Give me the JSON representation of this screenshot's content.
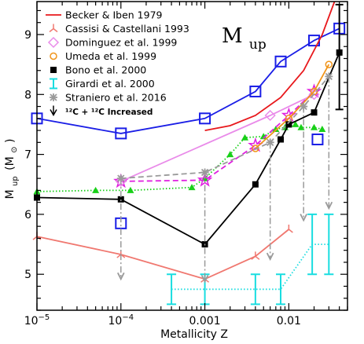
{
  "chart_data": {
    "type": "line",
    "title": "",
    "annotation": {
      "text_main": "M",
      "text_sub": "up"
    },
    "xlabel": "Metallicity Z",
    "ylabel_main": "M",
    "ylabel_sub": "up",
    "ylabel_unit": "(M",
    "ylabel_unit_sun": "⊙",
    "ylabel_unit_close": ")",
    "xscale": "log",
    "xlim": [
      1e-05,
      0.05
    ],
    "ylim": [
      4.4,
      9.55
    ],
    "xticks": [
      {
        "value": 1e-05,
        "base": "10",
        "exp": "−5"
      },
      {
        "value": 0.0001,
        "base": "10",
        "exp": "−4"
      },
      {
        "value": 0.001,
        "label": "0.001"
      },
      {
        "value": 0.01,
        "label": "0.01"
      }
    ],
    "yticks": [
      5,
      6,
      7,
      8,
      9
    ],
    "legend_position": "top-left",
    "series": [
      {
        "name": "Becker & Iben 1979",
        "color": "#e8181c",
        "marker": "none",
        "style": "solid",
        "x": [
          0.001,
          0.002,
          0.004,
          0.008,
          0.015,
          0.025,
          0.035
        ],
        "y": [
          7.4,
          7.48,
          7.65,
          7.95,
          8.4,
          9.0,
          9.55
        ]
      },
      {
        "name": "Cassisi & Castellani 1993",
        "color": "#f07870",
        "marker": "tri",
        "style": "solid",
        "x": [
          1e-05,
          0.0001,
          0.001,
          0.004,
          0.01
        ],
        "y": [
          5.63,
          5.33,
          4.92,
          5.3,
          5.75
        ]
      },
      {
        "name": "Dominguez et al. 1999",
        "color": "#e98be9",
        "marker": "diamond",
        "style": "solid",
        "x": [
          0.0001,
          0.006,
          0.02
        ],
        "y": [
          6.55,
          7.65,
          8.0
        ]
      },
      {
        "name": "Umeda et al. 1999",
        "color": "#f0941a",
        "marker": "circle",
        "style": "solid",
        "x": [
          0.004,
          0.01,
          0.02,
          0.03
        ],
        "y": [
          7.1,
          7.6,
          8.05,
          8.5
        ]
      },
      {
        "name": "Bono et al. 2000",
        "color": "#000000",
        "marker": "square-filled",
        "style": "solid",
        "x": [
          1e-05,
          0.0001,
          0.001,
          0.004,
          0.008,
          0.01,
          0.02,
          0.04
        ],
        "y": [
          6.28,
          6.25,
          5.5,
          6.5,
          7.25,
          7.5,
          7.7,
          8.7
        ]
      },
      {
        "name": "Girardi et al. 2000",
        "color": "#19dde0",
        "marker": "errorbar",
        "style": "dotted",
        "x": [
          0.0004,
          0.001,
          0.004,
          0.008,
          0.019,
          0.03
        ],
        "y": [
          4.75,
          4.75,
          4.75,
          4.75,
          5.5,
          5.5
        ],
        "yerr_low": [
          0.25,
          0.25,
          0.25,
          0.25,
          0.5,
          0.5
        ],
        "yerr_high": [
          0.25,
          0.25,
          0.25,
          0.25,
          0.5,
          0.5
        ]
      },
      {
        "name": "Straniero et al. 2016",
        "color": "#9a9a9a",
        "marker": "asterisk",
        "style": "dashed",
        "x": [
          0.0001,
          0.001,
          0.006,
          0.015,
          0.03
        ],
        "y": [
          6.6,
          6.7,
          7.2,
          7.8,
          8.3
        ]
      },
      {
        "name": "¹²C + ¹²C Increased",
        "color": "#9a9a9a",
        "marker": "arrow-down",
        "style": "dashdot",
        "x": [
          0.0001,
          0.001,
          0.006,
          0.015,
          0.03
        ],
        "y": [
          4.92,
          4.88,
          5.25,
          5.9,
          6.1
        ],
        "from_y": [
          6.6,
          6.7,
          7.2,
          7.8,
          8.3
        ]
      }
    ],
    "unlabeled_series": [
      {
        "color": "#1a1ee6",
        "marker": "square-open",
        "style": "solid",
        "x": [
          1e-05,
          0.0001,
          0.001,
          0.004,
          0.008,
          0.02,
          0.04
        ],
        "y": [
          7.6,
          7.35,
          7.6,
          8.05,
          8.55,
          8.9,
          9.1
        ]
      },
      {
        "color": "#1a1ee6",
        "marker": "square-open",
        "style": "none",
        "x": [
          0.0001,
          0.022
        ],
        "y": [
          5.85,
          7.25
        ]
      },
      {
        "color": "#18d018",
        "marker": "triangle-filled",
        "style": "dotted",
        "x": [
          1e-05,
          5e-05,
          0.00013,
          0.0007,
          0.001,
          0.002,
          0.003,
          0.005,
          0.007,
          0.009,
          0.012,
          0.014,
          0.02,
          0.025
        ],
        "y": [
          6.38,
          6.4,
          6.4,
          6.45,
          6.6,
          7.0,
          7.28,
          7.3,
          7.42,
          7.45,
          7.5,
          7.45,
          7.45,
          7.42
        ]
      },
      {
        "color": "#e020e0",
        "marker": "star-open",
        "style": "dashed",
        "x": [
          0.0001,
          0.001,
          0.004,
          0.01,
          0.02
        ],
        "y": [
          6.55,
          6.57,
          7.15,
          7.65,
          8.05
        ]
      },
      {
        "color": "#000000",
        "marker": "errorbar",
        "style": "none",
        "x": [
          0.04
        ],
        "y": [
          8.5
        ],
        "yerr_low": [
          0.75
        ],
        "yerr_high": [
          1.0
        ]
      }
    ]
  }
}
